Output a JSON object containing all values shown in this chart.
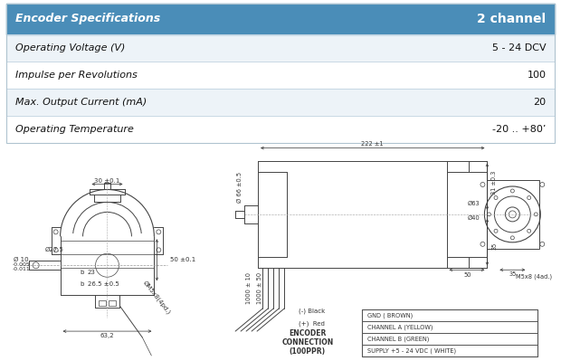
{
  "table_header_left": "Encoder Specifications",
  "table_header_right": "2 channel",
  "table_rows": [
    [
      "Operating Voltage (V)",
      "5 - 24 DCV"
    ],
    [
      "Impulse per Revolutions",
      "100"
    ],
    [
      "Max. Output Current (mA)",
      "20"
    ],
    [
      "Operating Temperature",
      "-20 .. +80’"
    ]
  ],
  "header_bg": "#4a8db8",
  "header_text_color": "#ffffff",
  "row_bg_odd": "#edf3f8",
  "row_bg_even": "#ffffff",
  "row_text_color": "#111111",
  "fig_bg": "#ffffff",
  "lc": "#444444",
  "dc": "#333333",
  "enc_rows": [
    "GND ( BROWN)",
    "CHANNEL A (YELLOW)",
    "CHANNEL B (GREEN)",
    "SUPPLY +5 - 24 VDC ( WHITE)"
  ]
}
